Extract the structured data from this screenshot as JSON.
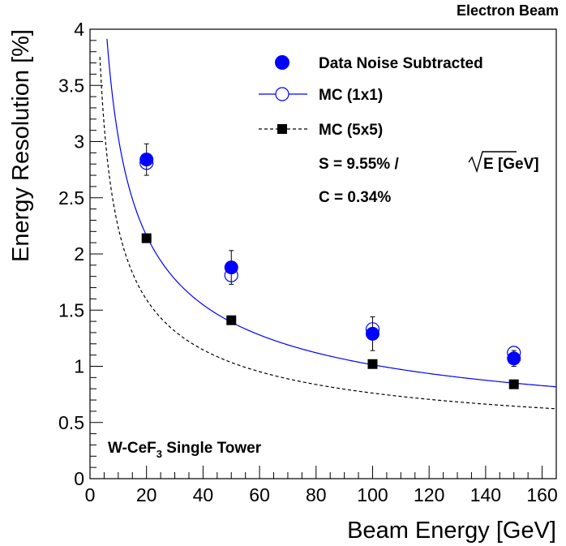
{
  "chart_data": {
    "type": "scatter",
    "corner_label": "Electron Beam",
    "xlabel": "Beam Energy [GeV]",
    "ylabel": "Energy Resolution [%]",
    "xlim": [
      0,
      165
    ],
    "ylim": [
      0,
      4
    ],
    "xticks": [
      "0",
      "20",
      "40",
      "60",
      "80",
      "100",
      "120",
      "140",
      "160"
    ],
    "yticks": [
      "0",
      "0.5",
      "1",
      "1.5",
      "2",
      "2.5",
      "3",
      "3.5",
      "4"
    ],
    "grid": false,
    "legend_position": "top-right",
    "detector_label": {
      "prefix": "W-CeF",
      "subscript": "3",
      "suffix": " Single Tower"
    },
    "fit_text": {
      "stochastic_prefix": "S =  9.55% / ",
      "stochastic_sqrt_arg": "E [GeV]",
      "constant": "C =  0.34%"
    },
    "series": [
      {
        "name": "Data Noise Subtracted",
        "marker": "filled-circle",
        "color": "#0000ff",
        "x": [
          20,
          50,
          100,
          150
        ],
        "y": [
          2.84,
          1.88,
          1.29,
          1.07
        ],
        "yerr": [
          0.14,
          0.15,
          0.15,
          0.07
        ]
      },
      {
        "name": "MC (1x1)",
        "marker": "open-circle",
        "color": "#0000ff",
        "x": [
          20,
          50,
          100,
          150
        ],
        "y": [
          2.81,
          1.81,
          1.33,
          1.12
        ]
      },
      {
        "name": "MC (5x5)",
        "marker": "filled-square",
        "color": "#000000",
        "x": [
          20,
          50,
          100,
          150
        ],
        "y": [
          2.14,
          1.41,
          1.02,
          0.84
        ]
      }
    ],
    "fits": [
      {
        "series": "MC (1x1)",
        "style": "solid",
        "color": "#0000ff",
        "stochastic": 9.55,
        "constant": 0.34
      },
      {
        "series": "MC (5x5)",
        "style": "dashed",
        "color": "#000000",
        "stochastic": 7.0,
        "constant": 0.3
      }
    ]
  }
}
